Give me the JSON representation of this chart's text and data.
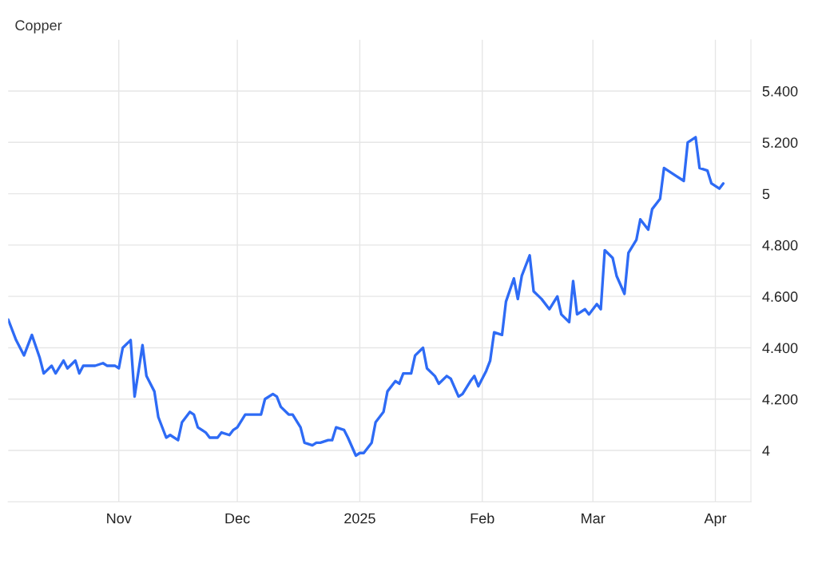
{
  "chart_data": {
    "type": "line",
    "title": "Copper",
    "x": [
      "2024-10-04",
      "2024-10-06",
      "2024-10-08",
      "2024-10-10",
      "2024-10-12",
      "2024-10-13",
      "2024-10-15",
      "2024-10-16",
      "2024-10-18",
      "2024-10-19",
      "2024-10-21",
      "2024-10-22",
      "2024-10-23",
      "2024-10-26",
      "2024-10-28",
      "2024-10-29",
      "2024-10-31",
      "2024-11-01",
      "2024-11-02",
      "2024-11-04",
      "2024-11-05",
      "2024-11-07",
      "2024-11-08",
      "2024-11-10",
      "2024-11-11",
      "2024-11-13",
      "2024-11-14",
      "2024-11-16",
      "2024-11-17",
      "2024-11-19",
      "2024-11-20",
      "2024-11-21",
      "2024-11-23",
      "2024-11-24",
      "2024-11-26",
      "2024-11-27",
      "2024-11-29",
      "2024-11-30",
      "2024-12-01",
      "2024-12-03",
      "2024-12-04",
      "2024-12-07",
      "2024-12-08",
      "2024-12-10",
      "2024-12-11",
      "2024-12-12",
      "2024-12-14",
      "2024-12-15",
      "2024-12-17",
      "2024-12-18",
      "2024-12-20",
      "2024-12-21",
      "2024-12-22",
      "2024-12-24",
      "2024-12-25",
      "2024-12-26",
      "2024-12-28",
      "2024-12-29",
      "2024-12-31",
      "2025-01-01",
      "2025-01-02",
      "2025-01-04",
      "2025-01-05",
      "2025-01-07",
      "2025-01-08",
      "2025-01-10",
      "2025-01-11",
      "2025-01-12",
      "2025-01-14",
      "2025-01-15",
      "2025-01-17",
      "2025-01-18",
      "2025-01-20",
      "2025-01-21",
      "2025-01-23",
      "2025-01-24",
      "2025-01-26",
      "2025-01-27",
      "2025-01-29",
      "2025-01-30",
      "2025-01-31",
      "2025-02-02",
      "2025-02-03",
      "2025-02-04",
      "2025-02-06",
      "2025-02-07",
      "2025-02-09",
      "2025-02-10",
      "2025-02-11",
      "2025-02-13",
      "2025-02-14",
      "2025-02-16",
      "2025-02-18",
      "2025-02-20",
      "2025-02-21",
      "2025-02-23",
      "2025-02-24",
      "2025-02-25",
      "2025-02-27",
      "2025-02-28",
      "2025-03-02",
      "2025-03-03",
      "2025-03-04",
      "2025-03-06",
      "2025-03-07",
      "2025-03-09",
      "2025-03-10",
      "2025-03-12",
      "2025-03-13",
      "2025-03-15",
      "2025-03-16",
      "2025-03-18",
      "2025-03-19",
      "2025-03-21",
      "2025-03-22",
      "2025-03-24",
      "2025-03-25",
      "2025-03-27",
      "2025-03-28",
      "2025-03-30",
      "2025-03-31",
      "2025-04-02",
      "2025-04-03"
    ],
    "series": [
      {
        "color": "#2e6bf5",
        "values": [
          4.51,
          4.43,
          4.37,
          4.45,
          4.36,
          4.3,
          4.33,
          4.3,
          4.35,
          4.32,
          4.35,
          4.3,
          4.33,
          4.33,
          4.34,
          4.33,
          4.33,
          4.32,
          4.4,
          4.43,
          4.21,
          4.41,
          4.29,
          4.23,
          4.13,
          4.05,
          4.06,
          4.04,
          4.11,
          4.15,
          4.14,
          4.09,
          4.07,
          4.05,
          4.05,
          4.07,
          4.06,
          4.08,
          4.09,
          4.14,
          4.14,
          4.14,
          4.2,
          4.22,
          4.21,
          4.17,
          4.14,
          4.14,
          4.09,
          4.03,
          4.02,
          4.03,
          4.03,
          4.04,
          4.04,
          4.09,
          4.08,
          4.05,
          3.98,
          3.99,
          3.99,
          4.03,
          4.11,
          4.15,
          4.23,
          4.27,
          4.26,
          4.3,
          4.3,
          4.37,
          4.4,
          4.32,
          4.29,
          4.26,
          4.29,
          4.28,
          4.21,
          4.22,
          4.27,
          4.29,
          4.25,
          4.31,
          4.35,
          4.46,
          4.45,
          4.58,
          4.67,
          4.59,
          4.68,
          4.76,
          4.62,
          4.59,
          4.55,
          4.6,
          4.53,
          4.5,
          4.66,
          4.53,
          4.55,
          4.53,
          4.57,
          4.55,
          4.78,
          4.75,
          4.68,
          4.61,
          4.77,
          4.82,
          4.9,
          4.86,
          4.94,
          4.98,
          5.1,
          5.08,
          5.07,
          5.05,
          5.2,
          5.22,
          5.1,
          5.09,
          5.04,
          5.02,
          5.04
        ]
      }
    ],
    "xlim": [
      "2024-10-04",
      "2025-04-10"
    ],
    "xticks": [
      {
        "value": "2024-11-01",
        "label": "Nov"
      },
      {
        "value": "2024-12-01",
        "label": "Dec"
      },
      {
        "value": "2025-01-01",
        "label": "2025"
      },
      {
        "value": "2025-02-01",
        "label": "Feb"
      },
      {
        "value": "2025-03-01",
        "label": "Mar"
      },
      {
        "value": "2025-04-01",
        "label": "Apr"
      }
    ],
    "ylim": [
      3.8,
      5.6
    ],
    "yticks": [
      4,
      {
        "value": 4.2,
        "label": "4.200"
      },
      {
        "value": 4.4,
        "label": "4.400"
      },
      {
        "value": 4.6,
        "label": "4.600"
      },
      {
        "value": 4.8,
        "label": "4.800"
      },
      5,
      {
        "value": 5.2,
        "label": "5.200"
      },
      {
        "value": 5.4,
        "label": "5.400"
      }
    ],
    "grid": true,
    "marker": "none",
    "line_style": "solid"
  }
}
